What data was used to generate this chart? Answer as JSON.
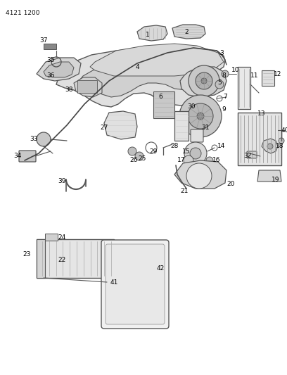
{
  "title": "4121 1200",
  "bg_color": "#ffffff",
  "text_color": "#000000",
  "line_color": "#555555"
}
